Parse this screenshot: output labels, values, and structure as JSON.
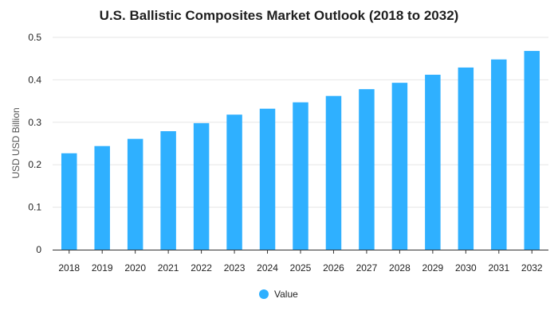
{
  "chart_data": {
    "type": "bar",
    "title": "U.S. Ballistic Composites Market Outlook (2018 to 2032)",
    "xlabel": "",
    "ylabel": "USD USD Billion",
    "categories": [
      "2018",
      "2019",
      "2020",
      "2021",
      "2022",
      "2023",
      "2024",
      "2025",
      "2026",
      "2027",
      "2028",
      "2029",
      "2030",
      "2031",
      "2032"
    ],
    "series": [
      {
        "name": "Value",
        "values": [
          0.227,
          0.244,
          0.261,
          0.279,
          0.298,
          0.318,
          0.332,
          0.347,
          0.362,
          0.378,
          0.393,
          0.412,
          0.429,
          0.448,
          0.468
        ],
        "color": "#2fb0ff"
      }
    ],
    "ylim": [
      0,
      0.5
    ],
    "yticks": [
      "0",
      "0.1",
      "0.2",
      "0.3",
      "0.4",
      "0.5"
    ],
    "grid": true,
    "legend_position": "bottom-center"
  }
}
